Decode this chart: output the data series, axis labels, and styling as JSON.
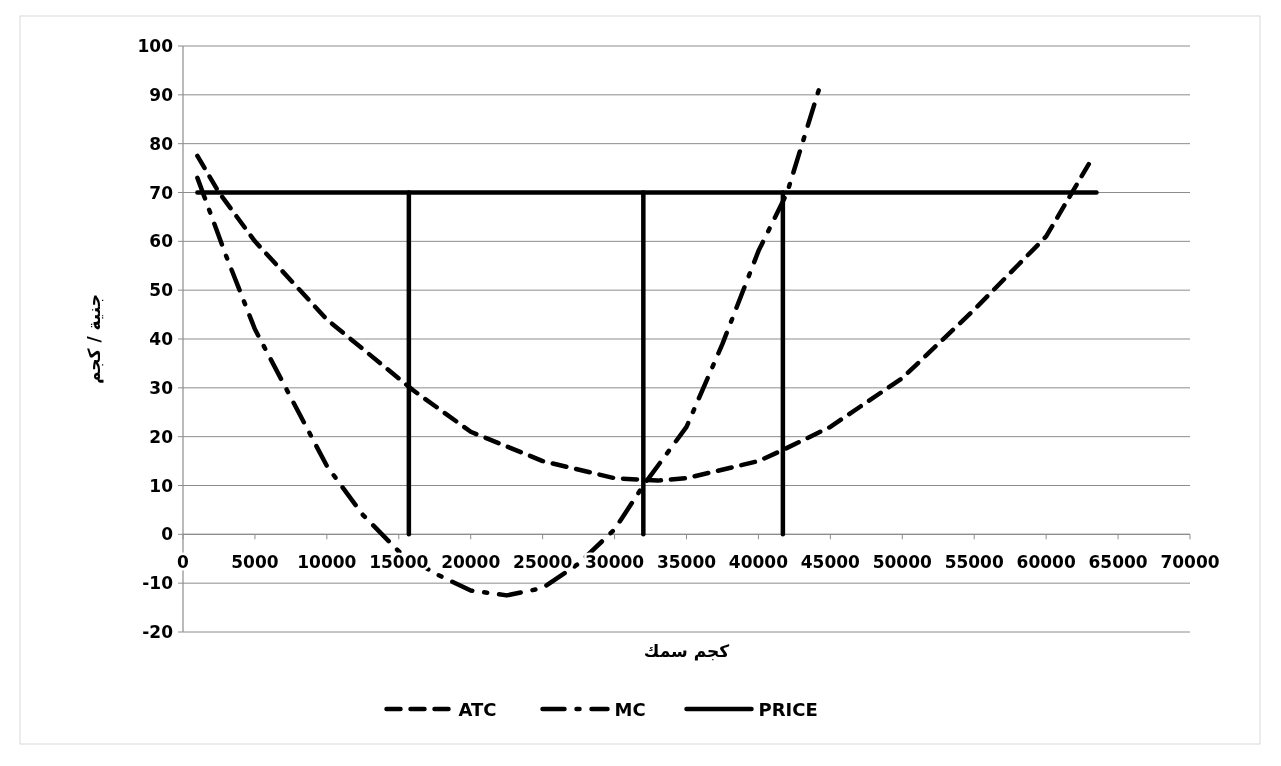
{
  "chart_data": {
    "type": "line",
    "xlabel": "كجم سمك",
    "ylabel": "جنية / كجم",
    "xlim": [
      0,
      70000
    ],
    "xticks": [
      0,
      5000,
      10000,
      15000,
      20000,
      25000,
      30000,
      35000,
      40000,
      45000,
      50000,
      55000,
      60000,
      65000,
      70000
    ],
    "ylim": [
      -20,
      100
    ],
    "yticks": [
      -20,
      -10,
      0,
      10,
      20,
      30,
      40,
      50,
      60,
      70,
      80,
      90,
      100
    ],
    "grid": "y",
    "legend": "bottom",
    "series": [
      {
        "name": "ATC",
        "color": "#000000",
        "line_style": "dashed",
        "x": [
          1000,
          2500,
          5000,
          10000,
          16000,
          20000,
          25000,
          30000,
          33000,
          35000,
          40000,
          41500,
          45000,
          50000,
          55000,
          60000,
          63000
        ],
        "values": [
          77.5,
          70,
          60,
          44,
          29.5,
          21,
          15,
          11.5,
          11,
          11.5,
          15,
          17,
          22,
          32,
          46,
          61,
          76
        ]
      },
      {
        "name": "MC",
        "color": "#000000",
        "line_style": "dashdot",
        "x": [
          1000,
          3000,
          5000,
          7500,
          10000,
          12500,
          15000,
          17500,
          20000,
          22500,
          25000,
          27500,
          30000,
          32000,
          35000,
          37500,
          40000,
          42000,
          44300
        ],
        "values": [
          73,
          57,
          42,
          28,
          14,
          4,
          -3.5,
          -8,
          -11.5,
          -12.5,
          -11,
          -6,
          1,
          10,
          22,
          39,
          58,
          70,
          92
        ]
      },
      {
        "name": "PRICE",
        "color": "#000000",
        "line_style": "solid",
        "x": [
          1000,
          63500
        ],
        "values": [
          70,
          70
        ]
      },
      {
        "color": "#000000",
        "line_style": "solid",
        "x": [
          15700,
          15700
        ],
        "values": [
          0,
          70
        ]
      },
      {
        "color": "#000000",
        "line_style": "solid",
        "x": [
          32000,
          32000
        ],
        "values": [
          0,
          70
        ]
      },
      {
        "color": "#000000",
        "line_style": "solid",
        "x": [
          41700,
          41700
        ],
        "values": [
          0,
          70
        ]
      }
    ]
  }
}
